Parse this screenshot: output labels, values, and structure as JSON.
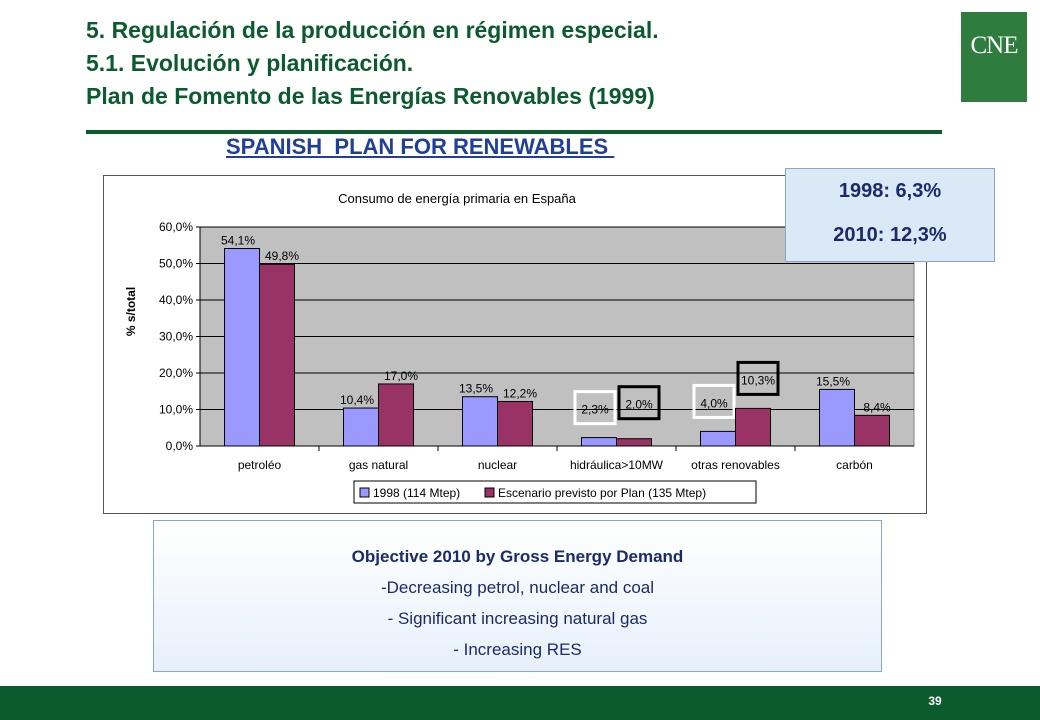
{
  "slide": {
    "title_lines": [
      "5. Regulación de la producción en régimen especial.",
      "5.1. Evolución y planificación.",
      "Plan de Fomento de las Energías Renovables (1999)"
    ],
    "logo_text": "CNE",
    "subtitle": "SPANISH  PLAN FOR RENEWABLES ",
    "page_number": "39",
    "colors": {
      "title_green": "#0b5b2e",
      "subtitle_blue": "#1f3f99"
    }
  },
  "percent_box": {
    "line1": "1998:  6,3%",
    "line2": "2010: 12,3%"
  },
  "objective_box": {
    "heading": "Objective 2010 by Gross Energy Demand",
    "lines": [
      "-Decreasing petrol, nuclear and coal",
      "- Significant increasing natural gas",
      "- Increasing RES"
    ]
  },
  "chart_data": {
    "type": "bar",
    "title": "Consumo de energía primaria en España",
    "ylabel": "% s/total",
    "xlabel": "",
    "ylim": [
      0,
      60
    ],
    "yticks": [
      "0,0%",
      "10,0%",
      "20,0%",
      "30,0%",
      "40,0%",
      "50,0%",
      "60,0%"
    ],
    "grid": true,
    "legend_position": "bottom",
    "categories": [
      "petroléo",
      "gas natural",
      "nuclear",
      "hidráulica>10MW",
      "otras renovables",
      "carbón"
    ],
    "series": [
      {
        "name": "1998 (114 Mtep)",
        "color": "#9999ff",
        "values": [
          54.1,
          10.4,
          13.5,
          2.3,
          4.0,
          15.5
        ],
        "labels": [
          "54,1%",
          "10,4%",
          "13,5%",
          "2,3%",
          "4,0%",
          "15,5%"
        ]
      },
      {
        "name": "Escenario previsto por Plan (135 Mtep)",
        "color": "#993366",
        "values": [
          49.8,
          17.0,
          12.2,
          2.0,
          10.3,
          8.4
        ],
        "labels": [
          "49,8%",
          "17,0%",
          "12,2%",
          "2,0%",
          "10,3%",
          "8,4%"
        ]
      }
    ],
    "highlighted_labels": [
      {
        "series": 0,
        "category": 3,
        "style": "white-box"
      },
      {
        "series": 1,
        "category": 3,
        "style": "black-box"
      },
      {
        "series": 0,
        "category": 4,
        "style": "white-box"
      },
      {
        "series": 1,
        "category": 4,
        "style": "black-box"
      }
    ],
    "plot_background": "#c0c0c0"
  }
}
